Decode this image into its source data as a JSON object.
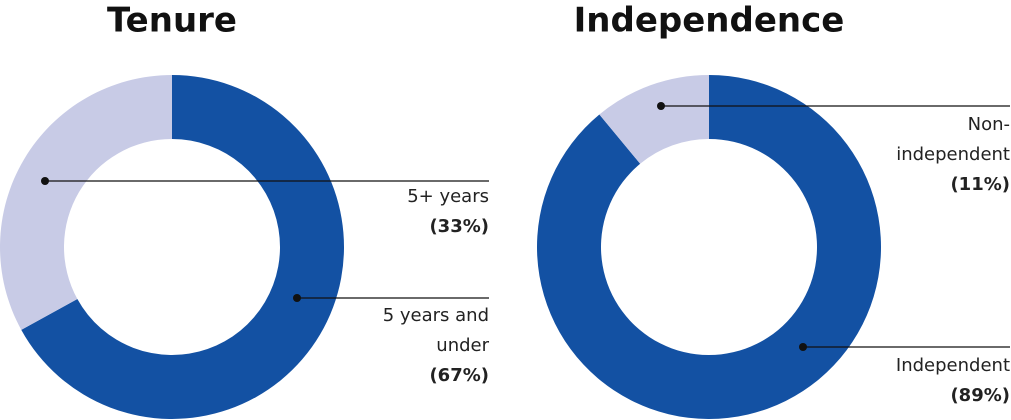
{
  "chart_data": [
    {
      "type": "pie",
      "donut": true,
      "title": "Tenure",
      "categories": [
        "5 years and under",
        "5+ years"
      ],
      "values": [
        67,
        33
      ],
      "value_labels": [
        "(67%)",
        "(33%)"
      ],
      "colors": [
        "#1351a3",
        "#c8cbe6"
      ]
    },
    {
      "type": "pie",
      "donut": true,
      "title": "Independence",
      "categories": [
        "Independent",
        "Non-independent"
      ],
      "values": [
        89,
        11
      ],
      "value_labels": [
        "(89%)",
        "(11%)"
      ],
      "colors": [
        "#1351a3",
        "#c8cbe6"
      ]
    }
  ]
}
